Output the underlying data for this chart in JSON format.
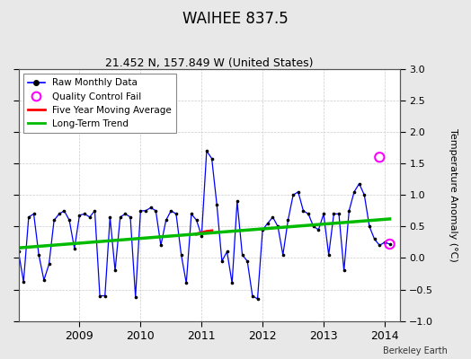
{
  "title": "WAIHEE 837.5",
  "subtitle": "21.452 N, 157.849 W (United States)",
  "ylabel": "Temperature Anomaly (°C)",
  "credit": "Berkeley Earth",
  "ylim": [
    -1,
    3
  ],
  "yticks": [
    -1,
    -0.5,
    0,
    0.5,
    1,
    1.5,
    2,
    2.5,
    3
  ],
  "xlim_start": 2008.0,
  "xlim_end": 2014.25,
  "bg_color": "#e8e8e8",
  "plot_bg": "#ffffff",
  "raw_color": "#0000ff",
  "raw_marker_color": "#000000",
  "moving_avg_color": "#ff0000",
  "trend_color": "#00bb00",
  "qc_fail_color": "#ff00ff",
  "raw_data": [
    [
      2008.0,
      0.1
    ],
    [
      2008.083,
      -0.38
    ],
    [
      2008.167,
      0.65
    ],
    [
      2008.25,
      0.7
    ],
    [
      2008.333,
      0.05
    ],
    [
      2008.417,
      -0.35
    ],
    [
      2008.5,
      -0.1
    ],
    [
      2008.583,
      0.6
    ],
    [
      2008.667,
      0.7
    ],
    [
      2008.75,
      0.75
    ],
    [
      2008.833,
      0.6
    ],
    [
      2008.917,
      0.15
    ],
    [
      2009.0,
      0.68
    ],
    [
      2009.083,
      0.7
    ],
    [
      2009.167,
      0.65
    ],
    [
      2009.25,
      0.75
    ],
    [
      2009.333,
      -0.6
    ],
    [
      2009.417,
      -0.6
    ],
    [
      2009.5,
      0.65
    ],
    [
      2009.583,
      -0.2
    ],
    [
      2009.667,
      0.65
    ],
    [
      2009.75,
      0.7
    ],
    [
      2009.833,
      0.65
    ],
    [
      2009.917,
      -0.62
    ],
    [
      2010.0,
      0.75
    ],
    [
      2010.083,
      0.75
    ],
    [
      2010.167,
      0.8
    ],
    [
      2010.25,
      0.75
    ],
    [
      2010.333,
      0.2
    ],
    [
      2010.417,
      0.6
    ],
    [
      2010.5,
      0.75
    ],
    [
      2010.583,
      0.7
    ],
    [
      2010.667,
      0.05
    ],
    [
      2010.75,
      -0.4
    ],
    [
      2010.833,
      0.7
    ],
    [
      2010.917,
      0.6
    ],
    [
      2011.0,
      0.35
    ],
    [
      2011.083,
      1.7
    ],
    [
      2011.167,
      1.58
    ],
    [
      2011.25,
      0.85
    ],
    [
      2011.333,
      -0.05
    ],
    [
      2011.417,
      0.1
    ],
    [
      2011.5,
      -0.4
    ],
    [
      2011.583,
      0.9
    ],
    [
      2011.667,
      0.05
    ],
    [
      2011.75,
      -0.05
    ],
    [
      2011.833,
      -0.6
    ],
    [
      2011.917,
      -0.65
    ],
    [
      2012.0,
      0.45
    ],
    [
      2012.083,
      0.55
    ],
    [
      2012.167,
      0.65
    ],
    [
      2012.25,
      0.5
    ],
    [
      2012.333,
      0.05
    ],
    [
      2012.417,
      0.6
    ],
    [
      2012.5,
      1.0
    ],
    [
      2012.583,
      1.05
    ],
    [
      2012.667,
      0.75
    ],
    [
      2012.75,
      0.7
    ],
    [
      2012.833,
      0.5
    ],
    [
      2012.917,
      0.45
    ],
    [
      2013.0,
      0.7
    ],
    [
      2013.083,
      0.05
    ],
    [
      2013.167,
      0.7
    ],
    [
      2013.25,
      0.7
    ],
    [
      2013.333,
      -0.2
    ],
    [
      2013.417,
      0.75
    ],
    [
      2013.5,
      1.05
    ],
    [
      2013.583,
      1.18
    ],
    [
      2013.667,
      1.0
    ],
    [
      2013.75,
      0.5
    ],
    [
      2013.833,
      0.3
    ],
    [
      2013.917,
      0.2
    ],
    [
      2014.0,
      0.25
    ],
    [
      2014.083,
      0.22
    ]
  ],
  "moving_avg_data": [
    [
      2010.917,
      0.38
    ],
    [
      2011.0,
      0.4
    ],
    [
      2011.083,
      0.42
    ],
    [
      2011.167,
      0.43
    ]
  ],
  "trend_data": [
    [
      2008.0,
      0.16
    ],
    [
      2014.083,
      0.62
    ]
  ],
  "qc_fail_points": [
    [
      2013.917,
      1.6
    ],
    [
      2014.083,
      0.22
    ]
  ],
  "xticks": [
    2009,
    2010,
    2011,
    2012,
    2013,
    2014
  ],
  "xticklabels": [
    "2009",
    "2010",
    "2011",
    "2012",
    "2013",
    "2014"
  ]
}
